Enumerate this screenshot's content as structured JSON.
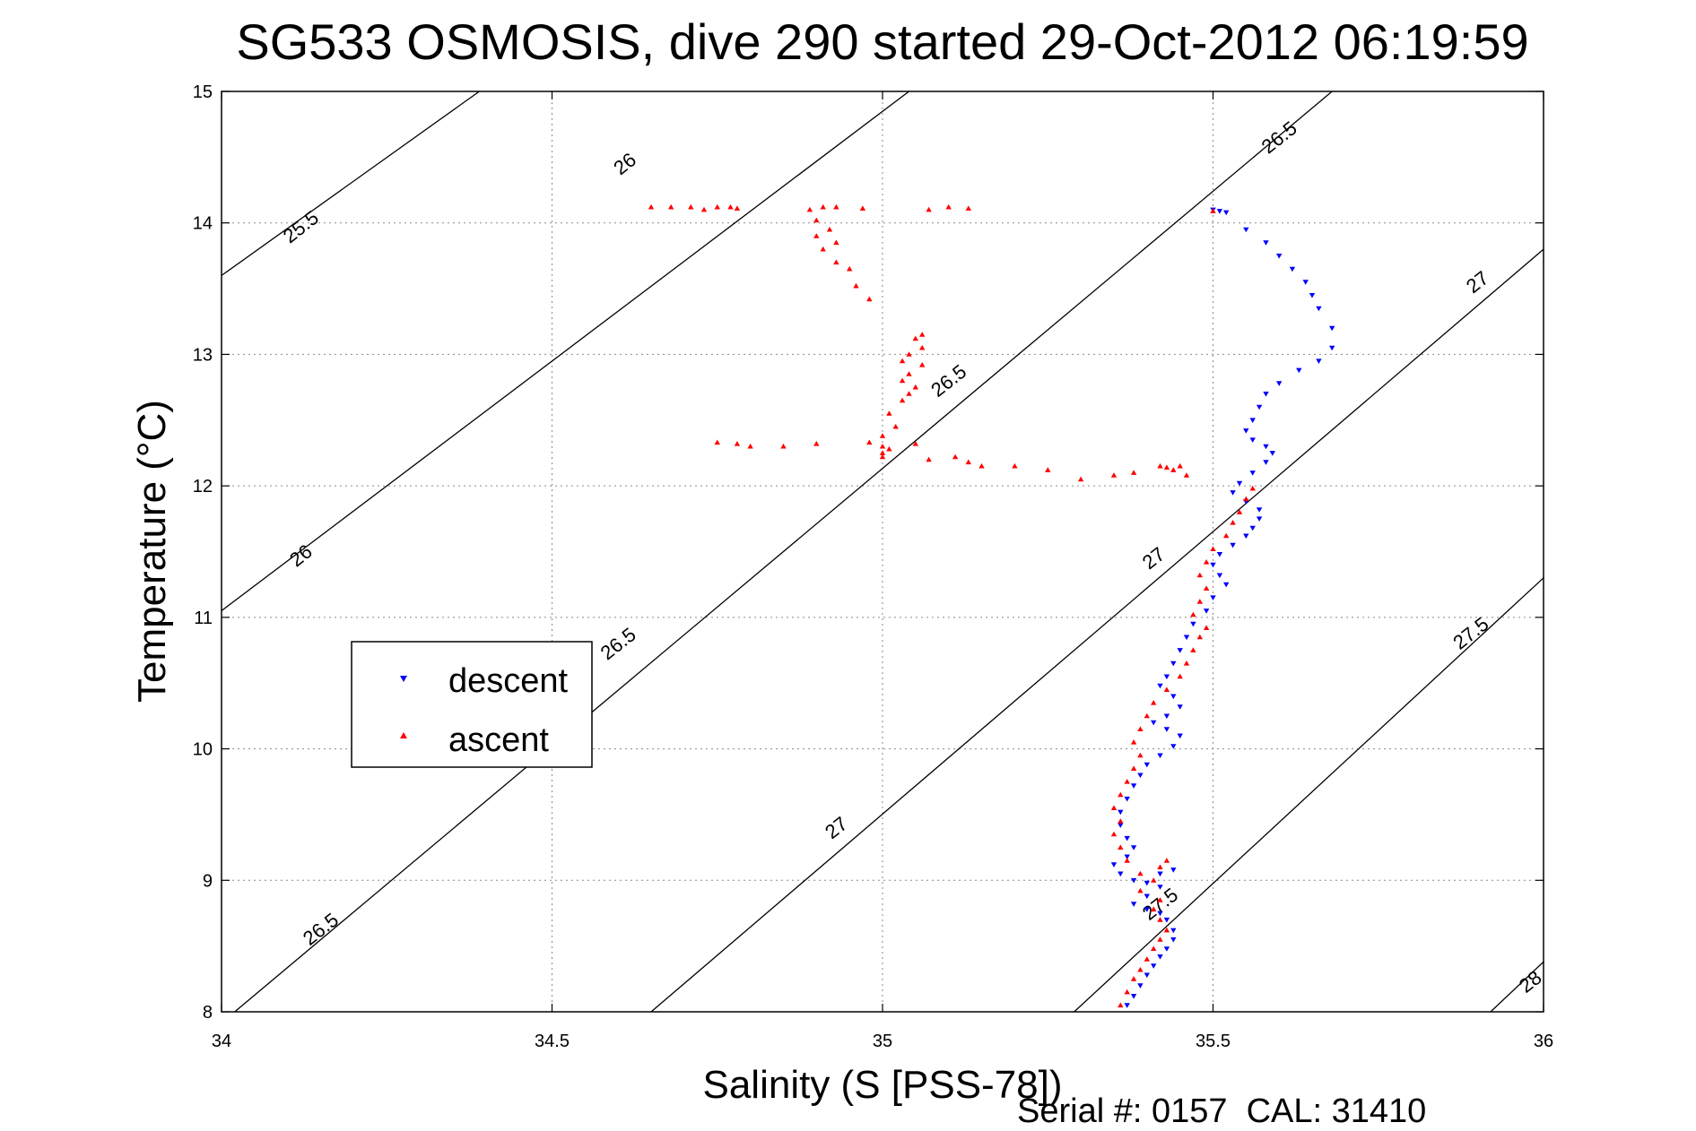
{
  "chart_data": {
    "type": "scatter",
    "title": "SG533 OSMOSIS, dive 290 started 29-Oct-2012 06:19:59",
    "xlabel": "Salinity (S [PSS-78])",
    "ylabel": "Temperature (°C)",
    "xlim": [
      34,
      36
    ],
    "ylim": [
      8,
      15
    ],
    "x_ticks": [
      "34",
      "34.5",
      "35",
      "35.5",
      "36"
    ],
    "y_ticks": [
      "8",
      "9",
      "10",
      "11",
      "12",
      "13",
      "14",
      "15"
    ],
    "grid": true,
    "legend_position": "left-middle",
    "footer": "Serial #: 0157  CAL: 31410",
    "density_contours": [
      {
        "level": 25.5,
        "label": "25.5",
        "points": [
          [
            34.0,
            13.6
          ],
          [
            34.39,
            15.0
          ]
        ]
      },
      {
        "level": 26.0,
        "label": "26",
        "points": [
          [
            34.0,
            11.05
          ],
          [
            35.04,
            15.0
          ]
        ]
      },
      {
        "level": 26.5,
        "label": "26.5",
        "points": [
          [
            34.02,
            8.0
          ],
          [
            35.68,
            15.0
          ]
        ]
      },
      {
        "level": 27.0,
        "label": "27",
        "points": [
          [
            34.65,
            8.0
          ],
          [
            36.0,
            13.8
          ]
        ]
      },
      {
        "level": 27.5,
        "label": "27.5",
        "points": [
          [
            35.29,
            8.0
          ],
          [
            36.0,
            11.3
          ]
        ]
      },
      {
        "level": 28.0,
        "label": "28",
        "points": [
          [
            35.92,
            8.0
          ],
          [
            36.0,
            8.38
          ]
        ]
      }
    ],
    "contour_labels": [
      {
        "text": "25.5",
        "x": 34.12,
        "y": 13.97
      },
      {
        "text": "26",
        "x": 34.61,
        "y": 14.45
      },
      {
        "text": "26",
        "x": 34.12,
        "y": 11.47
      },
      {
        "text": "26.5",
        "x": 35.1,
        "y": 12.8
      },
      {
        "text": "26.5",
        "x": 34.6,
        "y": 10.8
      },
      {
        "text": "26.5",
        "x": 34.15,
        "y": 8.63
      },
      {
        "text": "26.5",
        "x": 35.6,
        "y": 14.65
      },
      {
        "text": "27",
        "x": 34.93,
        "y": 9.4
      },
      {
        "text": "27",
        "x": 35.41,
        "y": 11.45
      },
      {
        "text": "27",
        "x": 35.9,
        "y": 13.55
      },
      {
        "text": "27.5",
        "x": 35.42,
        "y": 8.82
      },
      {
        "text": "27.5",
        "x": 35.89,
        "y": 10.88
      },
      {
        "text": "28",
        "x": 35.98,
        "y": 8.23
      }
    ],
    "series": [
      {
        "name": "descent",
        "color": "#0000ff",
        "marker": "triangle-down",
        "points": [
          [
            35.5,
            14.1
          ],
          [
            35.52,
            14.08
          ],
          [
            35.51,
            14.09
          ],
          [
            35.55,
            13.95
          ],
          [
            35.58,
            13.85
          ],
          [
            35.6,
            13.75
          ],
          [
            35.62,
            13.65
          ],
          [
            35.64,
            13.55
          ],
          [
            35.65,
            13.45
          ],
          [
            35.66,
            13.35
          ],
          [
            35.68,
            13.2
          ],
          [
            35.68,
            13.05
          ],
          [
            35.66,
            12.95
          ],
          [
            35.63,
            12.88
          ],
          [
            35.6,
            12.78
          ],
          [
            35.58,
            12.7
          ],
          [
            35.57,
            12.6
          ],
          [
            35.56,
            12.5
          ],
          [
            35.55,
            12.42
          ],
          [
            35.56,
            12.35
          ],
          [
            35.58,
            12.3
          ],
          [
            35.59,
            12.25
          ],
          [
            35.58,
            12.18
          ],
          [
            35.56,
            12.1
          ],
          [
            35.54,
            12.02
          ],
          [
            35.53,
            11.95
          ],
          [
            35.55,
            11.88
          ],
          [
            35.57,
            11.82
          ],
          [
            35.57,
            11.75
          ],
          [
            35.56,
            11.68
          ],
          [
            35.55,
            11.62
          ],
          [
            35.53,
            11.55
          ],
          [
            35.51,
            11.48
          ],
          [
            35.5,
            11.4
          ],
          [
            35.51,
            11.32
          ],
          [
            35.52,
            11.25
          ],
          [
            35.5,
            11.15
          ],
          [
            35.49,
            11.05
          ],
          [
            35.47,
            10.95
          ],
          [
            35.46,
            10.85
          ],
          [
            35.45,
            10.75
          ],
          [
            35.44,
            10.65
          ],
          [
            35.43,
            10.55
          ],
          [
            35.42,
            10.48
          ],
          [
            35.44,
            10.4
          ],
          [
            35.45,
            10.32
          ],
          [
            35.43,
            10.25
          ],
          [
            35.41,
            10.2
          ],
          [
            35.43,
            10.15
          ],
          [
            35.45,
            10.1
          ],
          [
            35.44,
            10.02
          ],
          [
            35.42,
            9.95
          ],
          [
            35.4,
            9.88
          ],
          [
            35.39,
            9.8
          ],
          [
            35.38,
            9.72
          ],
          [
            35.37,
            9.62
          ],
          [
            35.36,
            9.52
          ],
          [
            35.36,
            9.42
          ],
          [
            35.37,
            9.32
          ],
          [
            35.38,
            9.25
          ],
          [
            35.37,
            9.18
          ],
          [
            35.35,
            9.12
          ],
          [
            35.36,
            9.05
          ],
          [
            35.38,
            9.0
          ],
          [
            35.4,
            8.98
          ],
          [
            35.42,
            9.05
          ],
          [
            35.44,
            9.08
          ],
          [
            35.42,
            8.95
          ],
          [
            35.4,
            8.88
          ],
          [
            35.38,
            8.82
          ],
          [
            35.4,
            8.78
          ],
          [
            35.42,
            8.75
          ],
          [
            35.43,
            8.7
          ],
          [
            35.44,
            8.62
          ],
          [
            35.44,
            8.55
          ],
          [
            35.43,
            8.48
          ],
          [
            35.42,
            8.42
          ],
          [
            35.41,
            8.35
          ],
          [
            35.4,
            8.28
          ],
          [
            35.39,
            8.2
          ],
          [
            35.38,
            8.12
          ],
          [
            35.37,
            8.05
          ]
        ]
      },
      {
        "name": "ascent",
        "color": "#ff0000",
        "marker": "triangle-up",
        "points": [
          [
            35.5,
            14.09
          ],
          [
            34.65,
            14.12
          ],
          [
            34.68,
            14.12
          ],
          [
            34.71,
            14.12
          ],
          [
            34.73,
            14.1
          ],
          [
            34.75,
            14.12
          ],
          [
            34.77,
            14.12
          ],
          [
            34.78,
            14.11
          ],
          [
            34.89,
            14.1
          ],
          [
            34.91,
            14.12
          ],
          [
            34.93,
            14.12
          ],
          [
            34.97,
            14.11
          ],
          [
            35.07,
            14.1
          ],
          [
            35.1,
            14.12
          ],
          [
            35.13,
            14.11
          ],
          [
            34.9,
            14.02
          ],
          [
            34.92,
            13.95
          ],
          [
            34.9,
            13.9
          ],
          [
            34.93,
            13.85
          ],
          [
            34.91,
            13.8
          ],
          [
            34.93,
            13.7
          ],
          [
            34.95,
            13.65
          ],
          [
            34.96,
            13.52
          ],
          [
            34.98,
            13.42
          ],
          [
            35.06,
            13.15
          ],
          [
            35.05,
            13.12
          ],
          [
            35.06,
            13.05
          ],
          [
            35.04,
            13.0
          ],
          [
            35.03,
            12.95
          ],
          [
            35.06,
            12.92
          ],
          [
            35.04,
            12.85
          ],
          [
            35.03,
            12.8
          ],
          [
            35.05,
            12.75
          ],
          [
            35.04,
            12.7
          ],
          [
            35.03,
            12.65
          ],
          [
            35.01,
            12.55
          ],
          [
            35.02,
            12.45
          ],
          [
            35.0,
            12.38
          ],
          [
            34.98,
            12.33
          ],
          [
            35.0,
            12.3
          ],
          [
            35.01,
            12.28
          ],
          [
            35.0,
            12.25
          ],
          [
            35.0,
            12.22
          ],
          [
            34.75,
            12.33
          ],
          [
            34.78,
            12.32
          ],
          [
            34.8,
            12.3
          ],
          [
            34.85,
            12.3
          ],
          [
            34.9,
            12.32
          ],
          [
            35.05,
            12.32
          ],
          [
            35.07,
            12.2
          ],
          [
            35.11,
            12.22
          ],
          [
            35.13,
            12.18
          ],
          [
            35.15,
            12.15
          ],
          [
            35.2,
            12.15
          ],
          [
            35.25,
            12.12
          ],
          [
            35.3,
            12.05
          ],
          [
            35.35,
            12.08
          ],
          [
            35.38,
            12.1
          ],
          [
            35.42,
            12.15
          ],
          [
            35.43,
            12.14
          ],
          [
            35.44,
            12.12
          ],
          [
            35.45,
            12.15
          ],
          [
            35.46,
            12.08
          ],
          [
            35.56,
            11.98
          ],
          [
            35.55,
            11.9
          ],
          [
            35.54,
            11.8
          ],
          [
            35.53,
            11.72
          ],
          [
            35.52,
            11.62
          ],
          [
            35.5,
            11.52
          ],
          [
            35.49,
            11.42
          ],
          [
            35.48,
            11.32
          ],
          [
            35.49,
            11.22
          ],
          [
            35.48,
            11.12
          ],
          [
            35.47,
            11.02
          ],
          [
            35.49,
            10.92
          ],
          [
            35.48,
            10.85
          ],
          [
            35.47,
            10.75
          ],
          [
            35.46,
            10.65
          ],
          [
            35.45,
            10.55
          ],
          [
            35.43,
            10.45
          ],
          [
            35.41,
            10.35
          ],
          [
            35.4,
            10.25
          ],
          [
            35.39,
            10.15
          ],
          [
            35.38,
            10.05
          ],
          [
            35.39,
            9.95
          ],
          [
            35.38,
            9.85
          ],
          [
            35.37,
            9.75
          ],
          [
            35.36,
            9.65
          ],
          [
            35.35,
            9.55
          ],
          [
            35.36,
            9.45
          ],
          [
            35.35,
            9.35
          ],
          [
            35.36,
            9.25
          ],
          [
            35.37,
            9.15
          ],
          [
            35.39,
            9.05
          ],
          [
            35.42,
            9.1
          ],
          [
            35.43,
            9.15
          ],
          [
            35.41,
            9.0
          ],
          [
            35.39,
            8.92
          ],
          [
            35.42,
            8.85
          ],
          [
            35.41,
            8.78
          ],
          [
            35.42,
            8.7
          ],
          [
            35.43,
            8.62
          ],
          [
            35.42,
            8.55
          ],
          [
            35.41,
            8.48
          ],
          [
            35.4,
            8.4
          ],
          [
            35.39,
            8.32
          ],
          [
            35.38,
            8.25
          ],
          [
            35.37,
            8.15
          ],
          [
            35.36,
            8.05
          ]
        ]
      }
    ]
  }
}
